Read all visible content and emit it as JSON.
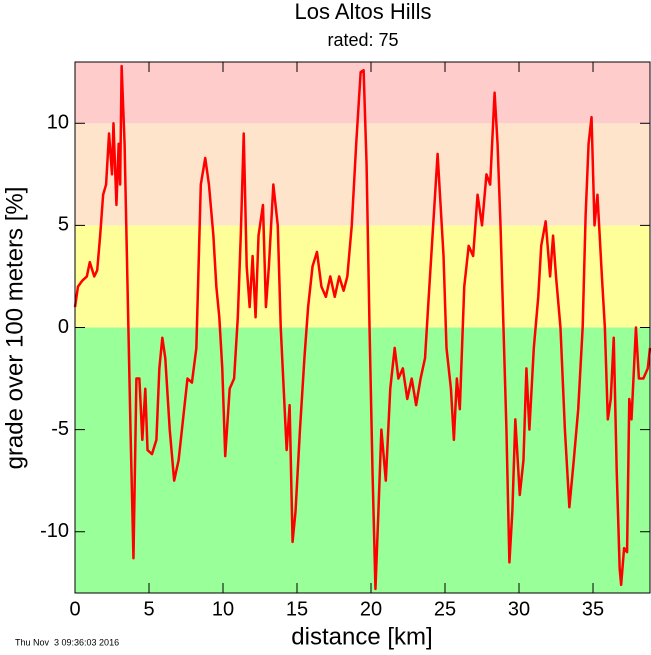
{
  "chart_data": {
    "type": "line",
    "title": "Los Altos Hills",
    "subtitle": "rated: 75",
    "x_label": "distance [km]",
    "y_label": "grade over 100 meters [%]",
    "footer": "Thu Nov  3 09:36:03 2016",
    "xlim": [
      0,
      38.85
    ],
    "ylim": [
      -13,
      13
    ],
    "xticks": [
      0,
      5,
      10,
      15,
      20,
      25,
      30,
      35
    ],
    "yticks": [
      -10,
      -5,
      0,
      5,
      10
    ],
    "bands": [
      {
        "from": -13,
        "to": 0,
        "color": "#99ff99"
      },
      {
        "from": 0,
        "to": 5,
        "color": "#ffff99"
      },
      {
        "from": 5,
        "to": 10,
        "color": "#ffe4cc"
      },
      {
        "from": 10,
        "to": 13,
        "color": "#ffcccc"
      }
    ],
    "x": [
      0.0,
      0.2,
      0.5,
      0.8,
      1.0,
      1.3,
      1.5,
      1.7,
      1.9,
      2.1,
      2.3,
      2.5,
      2.6,
      2.8,
      2.95,
      3.05,
      3.15,
      3.35,
      3.55,
      3.75,
      3.95,
      4.15,
      4.35,
      4.55,
      4.75,
      4.9,
      5.2,
      5.5,
      5.7,
      5.9,
      6.1,
      6.4,
      6.7,
      7.0,
      7.3,
      7.6,
      7.9,
      8.2,
      8.5,
      8.8,
      9.05,
      9.35,
      9.55,
      9.75,
      9.95,
      10.15,
      10.45,
      10.75,
      11.0,
      11.2,
      11.4,
      11.6,
      11.8,
      12.0,
      12.2,
      12.4,
      12.7,
      12.9,
      13.1,
      13.4,
      13.7,
      13.9,
      14.1,
      14.3,
      14.5,
      14.7,
      14.9,
      15.2,
      15.5,
      15.75,
      16.05,
      16.35,
      16.65,
      16.95,
      17.25,
      17.55,
      17.85,
      18.15,
      18.4,
      18.7,
      19.0,
      19.3,
      19.5,
      19.7,
      19.9,
      20.1,
      20.3,
      20.5,
      20.7,
      21.0,
      21.3,
      21.6,
      21.85,
      22.15,
      22.45,
      22.75,
      23.05,
      23.35,
      23.65,
      23.9,
      24.2,
      24.5,
      24.7,
      24.9,
      25.1,
      25.4,
      25.6,
      25.8,
      26.0,
      26.3,
      26.6,
      26.9,
      27.2,
      27.5,
      27.8,
      28.05,
      28.35,
      28.55,
      28.75,
      28.95,
      29.15,
      29.35,
      29.55,
      29.75,
      30.05,
      30.3,
      30.5,
      30.7,
      31.0,
      31.3,
      31.5,
      31.8,
      32.1,
      32.3,
      32.5,
      32.8,
      33.1,
      33.4,
      33.7,
      34.0,
      34.3,
      34.5,
      34.7,
      34.9,
      35.1,
      35.3,
      35.6,
      35.8,
      36.0,
      36.2,
      36.4,
      36.6,
      36.8,
      36.9,
      37.1,
      37.3,
      37.45,
      37.6,
      37.9,
      38.1,
      38.4,
      38.7,
      38.85
    ],
    "series": [
      {
        "name": "grade",
        "color": "#ff0000",
        "values": [
          1.0,
          2.0,
          2.3,
          2.5,
          3.2,
          2.5,
          2.8,
          4.5,
          6.5,
          7.0,
          9.5,
          7.5,
          10.0,
          6.0,
          9.0,
          7.0,
          12.8,
          9.0,
          2.0,
          -5,
          -11.3,
          -2.5,
          -2.5,
          -5.5,
          -3.0,
          -6.0,
          -6.2,
          -5.5,
          -2.0,
          -0.5,
          -1.5,
          -5.0,
          -7.5,
          -6.5,
          -4.5,
          -2.5,
          -2.7,
          -1.0,
          7.0,
          8.3,
          7.0,
          4.5,
          2.0,
          0.5,
          -2,
          -6.3,
          -3,
          -2.5,
          0.5,
          4.5,
          9.5,
          3.0,
          1.0,
          3.5,
          0.5,
          4.5,
          6.0,
          1.0,
          3.0,
          7.0,
          5.0,
          0,
          -3,
          -6,
          -3.8,
          -10.5,
          -9,
          -5,
          -1.5,
          1.0,
          3.0,
          3.7,
          2.0,
          1.5,
          2.5,
          1.5,
          2.5,
          1.8,
          2.5,
          5.0,
          9.0,
          12.5,
          12.6,
          8.0,
          0,
          -7,
          -12.8,
          -9,
          -5,
          -7.5,
          -3,
          -1,
          -2.5,
          -2,
          -3.5,
          -2.5,
          -3.8,
          -2.5,
          -1.5,
          1.5,
          5.0,
          8.5,
          6.0,
          3.5,
          -1,
          -3,
          -5.5,
          -2.5,
          -4.0,
          2.0,
          4.0,
          3.5,
          6.5,
          5.0,
          7.5,
          7.0,
          11.5,
          9.0,
          5.0,
          0,
          -5,
          -11.5,
          -9,
          -4.5,
          -8.2,
          -6.5,
          -2,
          -5,
          -1,
          1.5,
          4.0,
          5.2,
          2.5,
          4.5,
          2.5,
          0,
          -5,
          -8.8,
          -6.5,
          -4,
          0,
          5.5,
          9.0,
          10.3,
          5.0,
          6.5,
          2.5,
          0,
          -4.5,
          -3.5,
          -0.5,
          -7,
          -11.8,
          -12.6,
          -10.8,
          -11,
          -3.5,
          -4.5,
          0,
          -2.5,
          -2.5,
          -2.0,
          -1.0
        ]
      }
    ]
  }
}
